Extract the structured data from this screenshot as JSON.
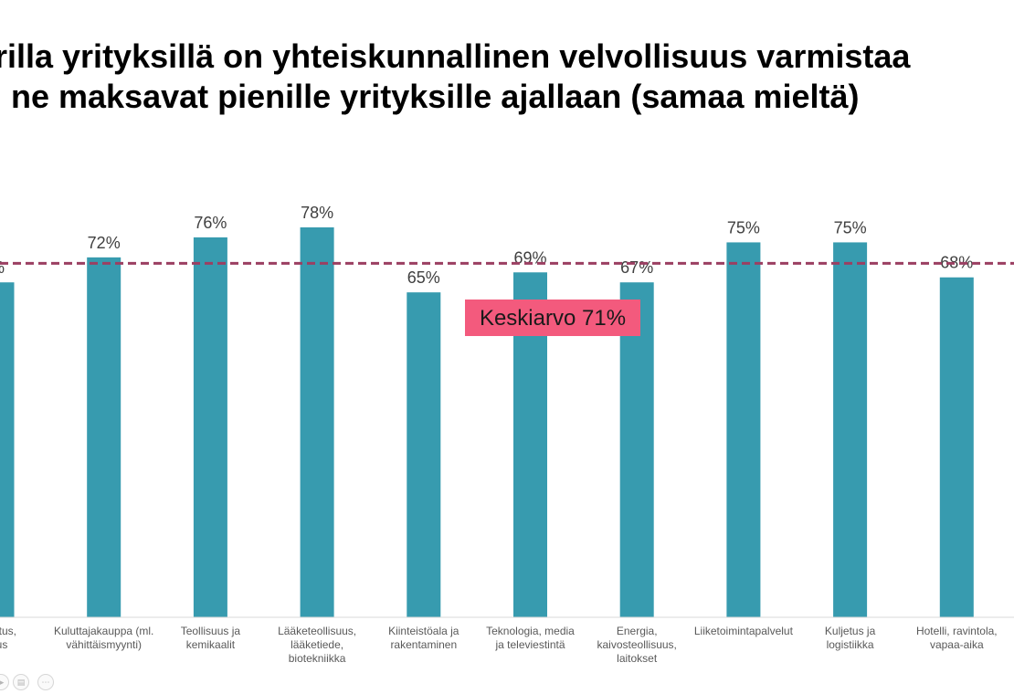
{
  "title": {
    "line1": "urilla yrityksillä on yhteiskunnallinen velvollisuus varmistaa",
    "line2": "ne maksavat pienille yrityksille ajallaan (samaa mieltä)"
  },
  "chart_data": {
    "type": "bar",
    "categories": [
      [
        "ahoitus,",
        "utus"
      ],
      [
        "Kuluttajakauppa (ml.",
        "vähittäismyynti)"
      ],
      [
        "Teollisuus ja",
        "kemikaalit"
      ],
      [
        "Lääketeollisuus,",
        "lääketiede,",
        "biotekniikka"
      ],
      [
        "Kiinteistöala ja",
        "rakentaminen"
      ],
      [
        "Teknologia, media",
        "ja televiestintä"
      ],
      [
        "Energia,",
        "kaivosteollisuus,",
        "laitokset"
      ],
      [
        "Liiketoimintapalvelut"
      ],
      [
        "Kuljetus ja",
        "logistiikka"
      ],
      [
        "Hotelli, ravintola,",
        "vapaa-aika"
      ]
    ],
    "values": [
      67,
      72,
      76,
      78,
      65,
      69,
      67,
      75,
      75,
      68
    ],
    "value_labels": [
      "%",
      "72%",
      "76%",
      "78%",
      "65%",
      "69%",
      "67%",
      "75%",
      "75%",
      "68%"
    ],
    "average": {
      "value": 71,
      "label": "Keskiarvo 71%"
    },
    "bar_color": "#379baf",
    "average_line_color": "#9b3f62",
    "average_label_bg": "#f35a7d",
    "ylim": [
      0,
      100
    ],
    "grid": false,
    "legend": false
  },
  "controls": [
    {
      "icon": "play-icon"
    },
    {
      "icon": "slides-icon"
    },
    {
      "icon": "more-icon"
    }
  ]
}
